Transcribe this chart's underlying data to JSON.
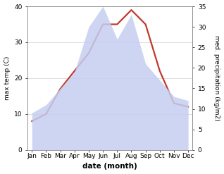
{
  "months": [
    "Jan",
    "Feb",
    "Mar",
    "Apr",
    "May",
    "Jun",
    "Jul",
    "Aug",
    "Sep",
    "Oct",
    "Nov",
    "Dec"
  ],
  "temperature": [
    8,
    10,
    17,
    22,
    27,
    35,
    35,
    39,
    35,
    22,
    13,
    12
  ],
  "precipitation": [
    9,
    11,
    15,
    19,
    30,
    35,
    27,
    33,
    21,
    17,
    13,
    12
  ],
  "temp_color": "#c0392b",
  "precip_fill_color": "#c5cef0",
  "title": "",
  "xlabel": "date (month)",
  "ylabel_left": "max temp (C)",
  "ylabel_right": "med. precipitation (kg/m2)",
  "ylim_left": [
    0,
    40
  ],
  "ylim_right": [
    0,
    35
  ],
  "yticks_left": [
    0,
    10,
    20,
    30,
    40
  ],
  "yticks_right": [
    0,
    5,
    10,
    15,
    20,
    25,
    30,
    35
  ],
  "temp_linewidth": 1.6,
  "xlabel_fontsize": 7.5,
  "label_fontsize": 6.5,
  "tick_fontsize": 6.5
}
